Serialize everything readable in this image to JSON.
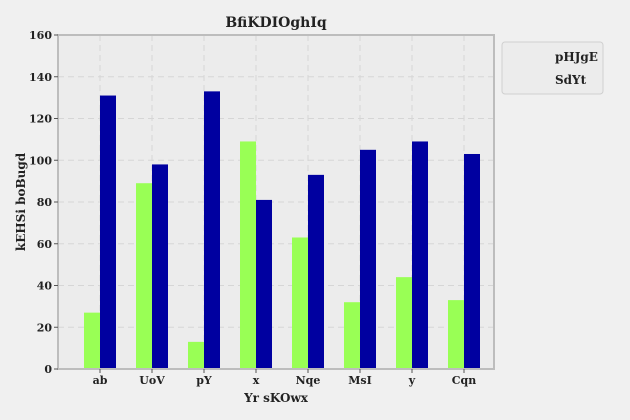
{
  "chart_data": {
    "type": "bar",
    "title": "BfiKDIOghIq",
    "xlabel": "Yr sKOwx",
    "ylabel": "kEHSi boBugd",
    "categories": [
      "ab",
      "UoV",
      "pY",
      "x",
      "Nqe",
      "MsI",
      "y",
      "Cqn"
    ],
    "series": [
      {
        "name": "pHJgE",
        "color": "#99ff55",
        "values": [
          27,
          89,
          13,
          109,
          63,
          32,
          44,
          33
        ]
      },
      {
        "name": "SdYt",
        "color": "#0000a0",
        "values": [
          131,
          98,
          133,
          81,
          93,
          105,
          109,
          103
        ]
      }
    ],
    "ylim": [
      0,
      160
    ],
    "yticks": [
      0,
      20,
      40,
      60,
      80,
      100,
      120,
      140,
      160
    ],
    "grid": true,
    "legend_position": "top-right-outside"
  }
}
